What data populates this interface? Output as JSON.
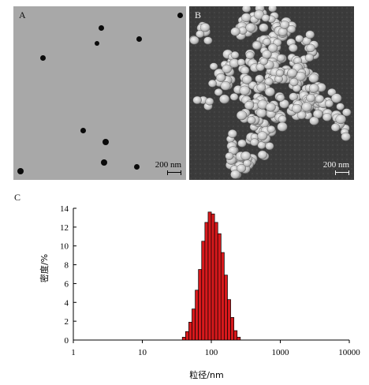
{
  "figure": {
    "panel_a": {
      "label": "A",
      "scale_label": "200 nm"
    },
    "panel_b": {
      "label": "B",
      "scale_label": "200 nm"
    },
    "panel_c": {
      "label": "C"
    }
  },
  "chart_data": {
    "type": "bar",
    "title": "",
    "xlabel": "粒径/nm",
    "ylabel": "密度/%",
    "xscale": "log",
    "xlim": [
      1,
      10000
    ],
    "ylim": [
      0,
      14
    ],
    "xticks": [
      1,
      10,
      100,
      1000,
      10000
    ],
    "xtick_labels": [
      "1",
      "10",
      "100",
      "1000",
      "10000"
    ],
    "yticks": [
      0,
      2,
      4,
      6,
      8,
      10,
      12,
      14
    ],
    "ytick_labels": [
      "0",
      "2",
      "4",
      "6",
      "8",
      "10",
      "12",
      "14"
    ],
    "grid": false,
    "bar_color": "#d7191c",
    "x": [
      40.1,
      44.7,
      49.8,
      55.4,
      61.7,
      68.7,
      76.5,
      85.2,
      94.9,
      105.6,
      117.6,
      131.0,
      145.8,
      162.4,
      180.8,
      201.4,
      224.2,
      249.6
    ],
    "values": [
      0.3,
      0.9,
      1.9,
      3.3,
      5.3,
      7.5,
      10.5,
      12.5,
      13.6,
      13.4,
      12.5,
      11.3,
      9.3,
      6.9,
      4.3,
      2.4,
      1.0,
      0.3
    ]
  }
}
